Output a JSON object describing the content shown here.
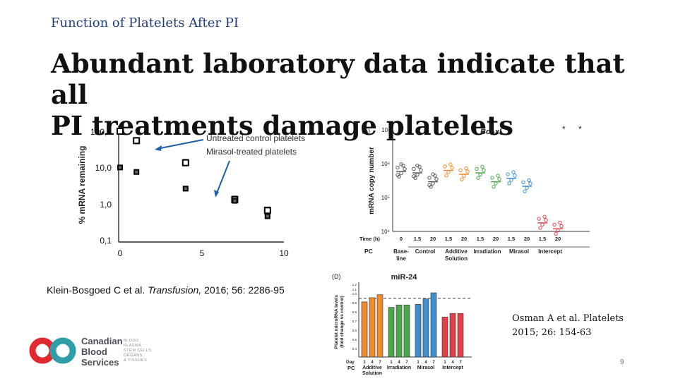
{
  "slide": {
    "subtitle": "Function of Platelets After PI",
    "title_line1": "Abundant laboratory data indicate that all",
    "title_line2": "PI treatments damage platelets",
    "citation_left_authors": "Klein-Bosgoed C et al. ",
    "citation_left_journal": "Transfusion,",
    "citation_left_rest": " 2016; 56: 2286-95",
    "citation_right_line1": "Osman A et al. Platelets",
    "citation_right_line2": "2015; 26: 154-63",
    "page_number": "9",
    "logo": {
      "line1": "Canadian",
      "line2": "Blood",
      "line3": "Services",
      "tag1": "BLOOD",
      "tag2": "PLASMA",
      "tag3": "STEM CELLS",
      "tag4": "ORGANS",
      "tag5": "& TISSUES",
      "colors": [
        "#e0282e",
        "#2f9ea8"
      ]
    }
  },
  "chart_data": [
    {
      "type": "scatter",
      "ylabel": "% mRNA remaining",
      "y_scale": "log",
      "ylim": [
        0.1,
        100
      ],
      "xlim": [
        0,
        10
      ],
      "x_ticks": [
        "0",
        "5",
        "10"
      ],
      "y_ticks": [
        "100,0",
        "10,0",
        "1,0",
        "0,1"
      ],
      "legend": [
        "Untreated control platelets",
        "Mirasol-treated platelets"
      ],
      "series": [
        {
          "name": "Untreated control platelets",
          "x": [
            0,
            1,
            4,
            7,
            9
          ],
          "y": [
            100,
            55,
            13.5,
            1.3,
            0.65
          ],
          "err": [
            0,
            8,
            3,
            0.3,
            0.15
          ]
        },
        {
          "name": "Mirasol-treated platelets",
          "x": [
            0,
            1,
            4,
            7,
            9
          ],
          "y": [
            10,
            7.5,
            2.6,
            1.2,
            0.45
          ],
          "err": [
            0,
            0,
            0.4,
            0,
            0
          ]
        }
      ]
    },
    {
      "type": "scatter",
      "panel": "(A)",
      "title": "Bcl-xl",
      "ylabel": "mRNA copy number",
      "y_scale": "log",
      "y_ticks": [
        "10⁴",
        "10⁵",
        "10⁶",
        "10⁷"
      ],
      "x_row_label": "Time (h)",
      "pc_label": "PC",
      "x_times": [
        "0",
        "1.5",
        "20",
        "1.5",
        "20",
        "1.5",
        "20",
        "1.5",
        "20",
        "1.5",
        "20"
      ],
      "groups": [
        "Base-line",
        "Control",
        "Additive Solution",
        "Irradiation",
        "Mirasol",
        "Intercept"
      ],
      "group_line1": [
        "Base-",
        "Control",
        "Additive",
        "Irradiation",
        "Mirasol",
        "Intercept"
      ],
      "group_line2": [
        "line",
        "",
        "Solution",
        "",
        "",
        ""
      ],
      "significance": "*",
      "colors": [
        "#555555",
        "#555555",
        "#555555",
        "#f08a2e",
        "#f08a2e",
        "#4ca64c",
        "#4ca64c",
        "#3f8fd0",
        "#3f8fd0",
        "#e0404a",
        "#e0404a"
      ],
      "medians": [
        600000,
        550000,
        300000,
        650000,
        500000,
        550000,
        300000,
        380000,
        220000,
        18000,
        12000
      ]
    },
    {
      "type": "bar",
      "panel": "(D)",
      "title": "miR-24",
      "ylabel_line1": "Platelet microRNA levels",
      "ylabel_line2": "(fold change vs control)",
      "ylim": [
        0,
        1.2
      ],
      "y_ticks": [
        "0.4",
        "0.5",
        "0.6",
        "0.7",
        "0.8",
        "0.9",
        "1.0",
        "1.1",
        "1.2"
      ],
      "day_row_label": "Day",
      "pc_label": "PC",
      "days": [
        "1",
        "4",
        "7",
        "1",
        "4",
        "7",
        "1",
        "4",
        "7",
        "1",
        "4",
        "7"
      ],
      "groups_line1": [
        "Additive",
        "Irradiation",
        "Mirasol",
        "Intercept"
      ],
      "groups_line2": [
        "Solution",
        "",
        "",
        ""
      ],
      "group_colors": [
        "#f08a2e",
        "#4ca64c",
        "#3f8fd0",
        "#e0404a"
      ],
      "values": [
        0.91,
        0.98,
        1.03,
        0.82,
        0.86,
        0.86,
        0.87,
        0.96,
        1.06,
        0.66,
        0.72,
        0.72
      ]
    }
  ]
}
